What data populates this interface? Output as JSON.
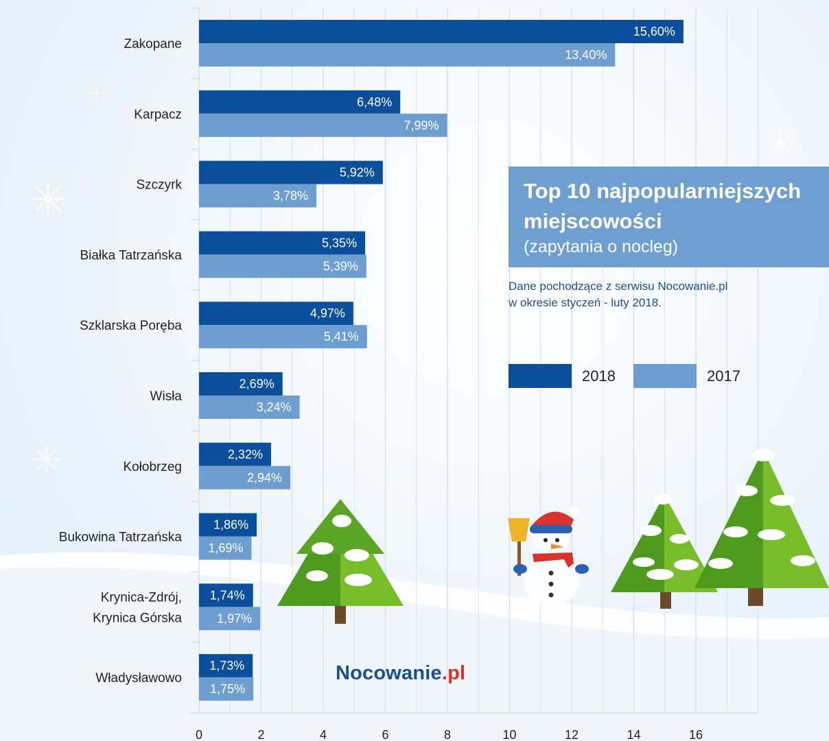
{
  "colors": {
    "series_2018": "#0b4e9b",
    "series_2017": "#6e9ed0",
    "brand_blue": "#1a4f8f",
    "brand_red": "#e0322c"
  },
  "title": {
    "line1": "Top 10 najpopularniejszych",
    "line2": "miejscowości",
    "subtitle": "(zapytania o nocleg)"
  },
  "source_note": {
    "line1": "Dane pochodzące z serwisu Nocowanie.pl",
    "line2": "w okresie styczeń - luty 2018."
  },
  "legend": [
    {
      "label": "2018",
      "color": "#0b4e9b"
    },
    {
      "label": "2017",
      "color": "#6e9ed0"
    }
  ],
  "brand": {
    "name": "Nocowanie",
    "suffix": ".pl"
  },
  "decorations": [
    "christmas-tree-icon",
    "snowman-icon",
    "snowflake-icon"
  ],
  "chart_data": {
    "type": "bar",
    "orientation": "horizontal",
    "categories": [
      [
        "Zakopane"
      ],
      [
        "Karpacz"
      ],
      [
        "Szczyrk"
      ],
      [
        "Białka Tatrzańska"
      ],
      [
        "Szklarska Poręba"
      ],
      [
        "Wisła"
      ],
      [
        "Kołobrzeg"
      ],
      [
        "Bukowina Tatrzańska"
      ],
      [
        "Krynica-Zdrój,",
        "Krynica Górska"
      ],
      [
        "Władysławowo"
      ]
    ],
    "series": [
      {
        "name": "2018",
        "color": "#0b4e9b",
        "values": [
          15.6,
          6.48,
          5.92,
          5.35,
          4.97,
          2.69,
          2.32,
          1.86,
          1.74,
          1.73
        ],
        "labels": [
          "15,60%",
          "6,48%",
          "5,92%",
          "5,35%",
          "4,97%",
          "2,69%",
          "2,32%",
          "1,86%",
          "1,74%",
          "1,73%"
        ]
      },
      {
        "name": "2017",
        "color": "#6e9ed0",
        "values": [
          13.4,
          7.99,
          3.78,
          5.39,
          5.41,
          3.24,
          2.94,
          1.69,
          1.97,
          1.75
        ],
        "labels": [
          "13,40%",
          "7,99%",
          "3,78%",
          "5,39%",
          "5,41%",
          "3,24%",
          "2,94%",
          "1,69%",
          "1,97%",
          "1,75%"
        ]
      }
    ],
    "xlim": [
      0,
      18
    ],
    "xticks": [
      0,
      2,
      4,
      6,
      8,
      10,
      12,
      14,
      16
    ],
    "grid": "vertical",
    "legend_position": "right"
  }
}
